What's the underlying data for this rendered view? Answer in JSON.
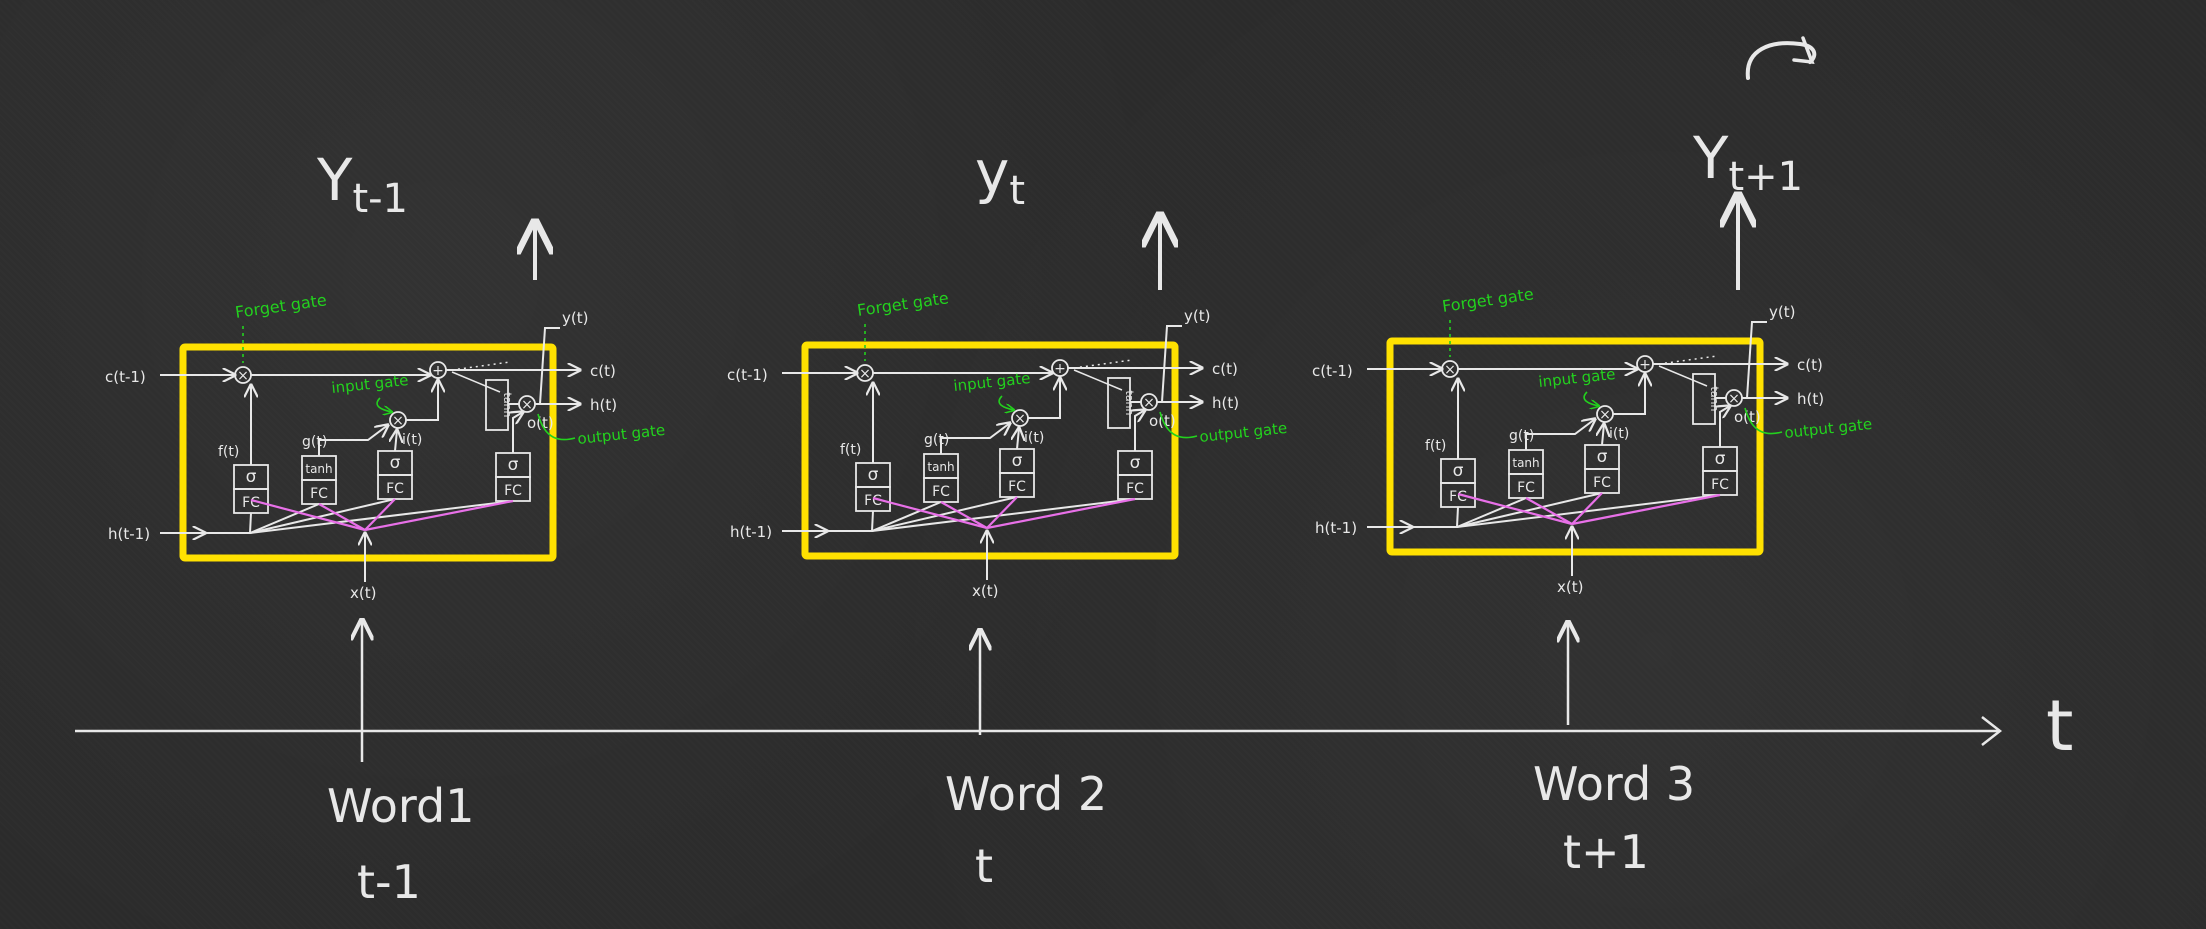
{
  "axis": {
    "label": "t"
  },
  "colors": {
    "background": "#2b2b2b",
    "chalk": "#e8e8e8",
    "cell_border": "#ffe100",
    "gate_label": "#23d11e",
    "input_lines": "#e870e8"
  },
  "cell_labels": {
    "c_in": "c(t-1)",
    "h_in": "h(t-1)",
    "x_in": "x(t)",
    "c_out": "c(t)",
    "h_out": "h(t)",
    "y_out": "y(t)",
    "f": "f(t)",
    "g": "g(t)",
    "i": "i(t)",
    "o": "o(t)",
    "forget_gate": "Forget gate",
    "input_gate": "input gate",
    "output_gate": "output gate",
    "fc": "FC",
    "sigma": "σ",
    "tanh_small": "tanh",
    "tanh_box": "tanh",
    "mult": "×",
    "plus": "+"
  },
  "steps": [
    {
      "output": "Y",
      "output_sub": "t-1",
      "word": "Word1",
      "time": "t-1"
    },
    {
      "output": "y",
      "output_sub": "t",
      "word": "Word 2",
      "time": "t"
    },
    {
      "output": "Y",
      "output_sub": "t+1",
      "word": "Word 3",
      "time": "t+1"
    }
  ]
}
